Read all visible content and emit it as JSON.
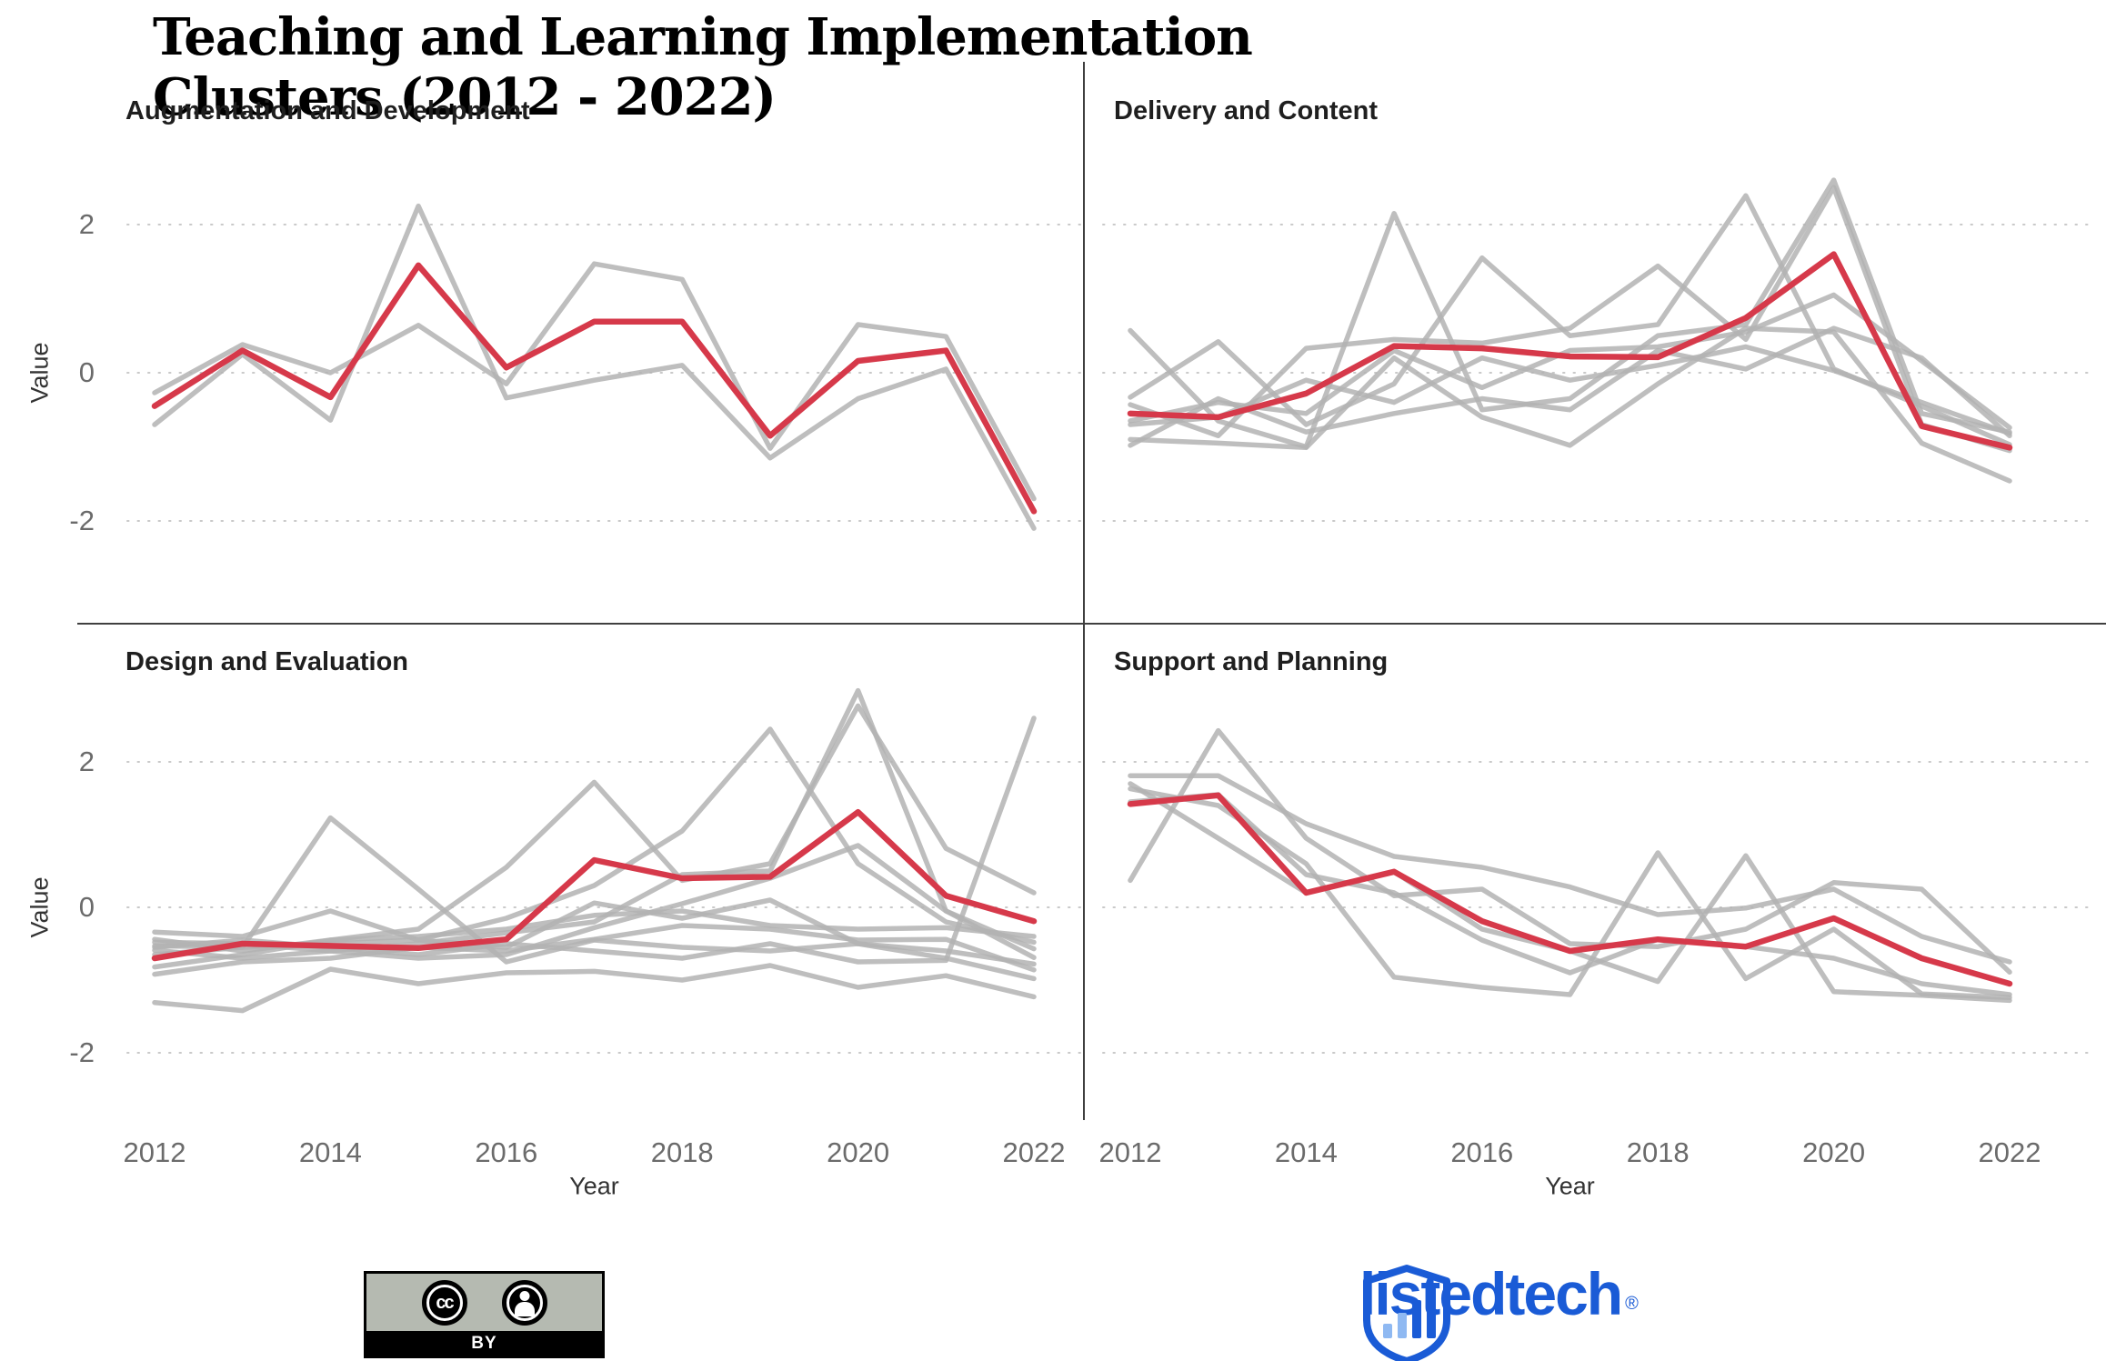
{
  "chart_data": {
    "type": "line",
    "title": "Teaching and Learning Implementation Clusters (2012 - 2022)",
    "xlabel": "Year",
    "ylabel": "Value",
    "x": [
      2012,
      2013,
      2014,
      2015,
      2016,
      2017,
      2018,
      2019,
      2020,
      2021,
      2022
    ],
    "x_tick_labels": [
      "2012",
      "2014",
      "2016",
      "2018",
      "2020",
      "2022"
    ],
    "y_ticks": [
      "2",
      "0",
      "-2"
    ],
    "y_tick_values": [
      2,
      0,
      -2
    ],
    "ylim": [
      -2.9,
      3.3
    ],
    "grid": "dotted horizontal at y ticks",
    "legend_position": "none",
    "panels": [
      {
        "title": "Augmentation and Development",
        "mean": [
          -0.45,
          0.3,
          -0.33,
          1.45,
          0.07,
          0.69,
          0.69,
          -0.85,
          0.16,
          0.3,
          -1.87
        ],
        "members": [
          [
            -0.27,
            0.38,
            0.0,
            0.64,
            -0.15,
            1.47,
            1.26,
            -1.02,
            0.65,
            0.49,
            -1.7
          ],
          [
            -0.7,
            0.25,
            -0.64,
            2.25,
            -0.34,
            -0.1,
            0.1,
            -1.15,
            -0.35,
            0.05,
            -2.1
          ]
        ]
      },
      {
        "title": "Delivery and Content",
        "mean": [
          -0.55,
          -0.6,
          -0.28,
          0.36,
          0.33,
          0.22,
          0.21,
          0.74,
          1.6,
          -0.72,
          -1.01
        ],
        "members": [
          [
            0.57,
            -0.65,
            -1.0,
            2.15,
            -0.5,
            -0.35,
            0.5,
            0.65,
            2.6,
            -0.55,
            -0.8
          ],
          [
            -0.33,
            0.42,
            -0.7,
            -0.15,
            1.55,
            0.5,
            0.65,
            2.39,
            0.05,
            -0.45,
            -0.97
          ],
          [
            -0.43,
            -0.85,
            0.33,
            0.45,
            0.4,
            0.6,
            1.44,
            0.45,
            2.5,
            -0.7,
            -1.05
          ],
          [
            -0.65,
            -0.4,
            -0.55,
            0.3,
            -0.2,
            0.3,
            0.35,
            0.55,
            1.05,
            0.16,
            -0.74
          ],
          [
            -0.7,
            -0.6,
            -0.1,
            -0.4,
            0.2,
            -0.1,
            0.1,
            0.35,
            0.03,
            -0.4,
            -0.82
          ],
          [
            -0.9,
            -0.95,
            -1.01,
            0.2,
            -0.6,
            -0.98,
            -0.15,
            0.6,
            0.55,
            -0.95,
            -1.46
          ],
          [
            -0.98,
            -0.35,
            -0.8,
            -0.55,
            -0.35,
            -0.5,
            0.3,
            0.05,
            0.6,
            0.2,
            -0.85
          ]
        ]
      },
      {
        "title": "Design and Evaluation",
        "mean": [
          -0.7,
          -0.5,
          -0.53,
          -0.56,
          -0.44,
          0.65,
          0.4,
          0.42,
          1.31,
          0.16,
          -0.19
        ],
        "members": [
          [
            -0.53,
            -0.55,
            1.23,
            0.25,
            -0.75,
            -0.45,
            -0.55,
            -0.6,
            -0.5,
            -0.6,
            -0.78
          ],
          [
            -0.44,
            -0.6,
            -0.45,
            -0.3,
            0.55,
            1.72,
            0.37,
            0.6,
            2.77,
            0.81,
            0.2
          ],
          [
            -0.34,
            -0.4,
            -0.05,
            -0.45,
            -0.15,
            0.3,
            1.05,
            2.45,
            0.6,
            -0.2,
            -0.48
          ],
          [
            -0.59,
            -0.7,
            -0.6,
            -0.5,
            -0.35,
            -0.2,
            0.45,
            0.5,
            2.98,
            -0.05,
            -0.57
          ],
          [
            -0.55,
            -0.45,
            -0.55,
            -0.65,
            -0.5,
            -0.6,
            -0.7,
            -0.5,
            -0.75,
            -0.73,
            2.6
          ],
          [
            -1.31,
            -1.42,
            -0.85,
            -1.05,
            -0.9,
            -0.88,
            -1.0,
            -0.8,
            -1.1,
            -0.94,
            -1.23
          ],
          [
            -0.92,
            -0.75,
            -0.7,
            -0.55,
            -0.6,
            -0.44,
            -0.25,
            -0.3,
            -0.45,
            -0.44,
            -0.86
          ],
          [
            -0.82,
            -0.65,
            -0.45,
            -0.4,
            -0.3,
            -0.11,
            -0.05,
            -0.25,
            -0.3,
            -0.28,
            -0.4
          ],
          [
            -0.48,
            -0.5,
            -0.6,
            -0.7,
            -0.65,
            -0.28,
            0.05,
            0.4,
            0.85,
            -0.05,
            -0.69
          ],
          [
            -0.65,
            -0.55,
            -0.5,
            -0.45,
            -0.55,
            0.06,
            -0.15,
            0.1,
            -0.5,
            -0.7,
            -0.98
          ]
        ]
      },
      {
        "title": "Support and Planning",
        "mean": [
          1.42,
          1.54,
          0.2,
          0.49,
          -0.19,
          -0.6,
          -0.44,
          -0.54,
          -0.15,
          -0.7,
          -1.05
        ],
        "members": [
          [
            0.37,
            2.43,
            0.95,
            0.16,
            0.25,
            -0.5,
            -0.54,
            -0.3,
            0.34,
            0.25,
            -0.89
          ],
          [
            1.81,
            1.81,
            1.15,
            0.7,
            0.55,
            0.28,
            -0.1,
            -0.01,
            0.25,
            -0.4,
            -0.75
          ],
          [
            1.63,
            1.4,
            0.6,
            -0.96,
            -1.1,
            -1.2,
            0.75,
            -0.98,
            -0.3,
            -1.19,
            -1.24
          ],
          [
            1.7,
            0.95,
            0.2,
            0.49,
            -0.3,
            -0.6,
            -1.02,
            0.71,
            -1.16,
            -1.21,
            -1.28
          ],
          [
            1.45,
            1.55,
            0.45,
            0.2,
            -0.45,
            -0.9,
            -0.44,
            -0.54,
            -0.7,
            -1.05,
            -1.2
          ]
        ]
      }
    ],
    "colors": {
      "mean_line": "#D6394A",
      "member_line": "#B3B3B3",
      "grid_line": "#C9C9C9",
      "divider": "#3F3F3F",
      "tick_text": "#6B6B6B",
      "axis_name_text": "#333333",
      "panel_title_text": "#1F1F1F",
      "brand_blue": "#1A5BD6",
      "brand_light_blue": "#8FB9F2"
    }
  },
  "footer": {
    "cc_initials": "cc",
    "cc_license": "BY",
    "brand": "listedtech",
    "reg_mark": "®"
  }
}
